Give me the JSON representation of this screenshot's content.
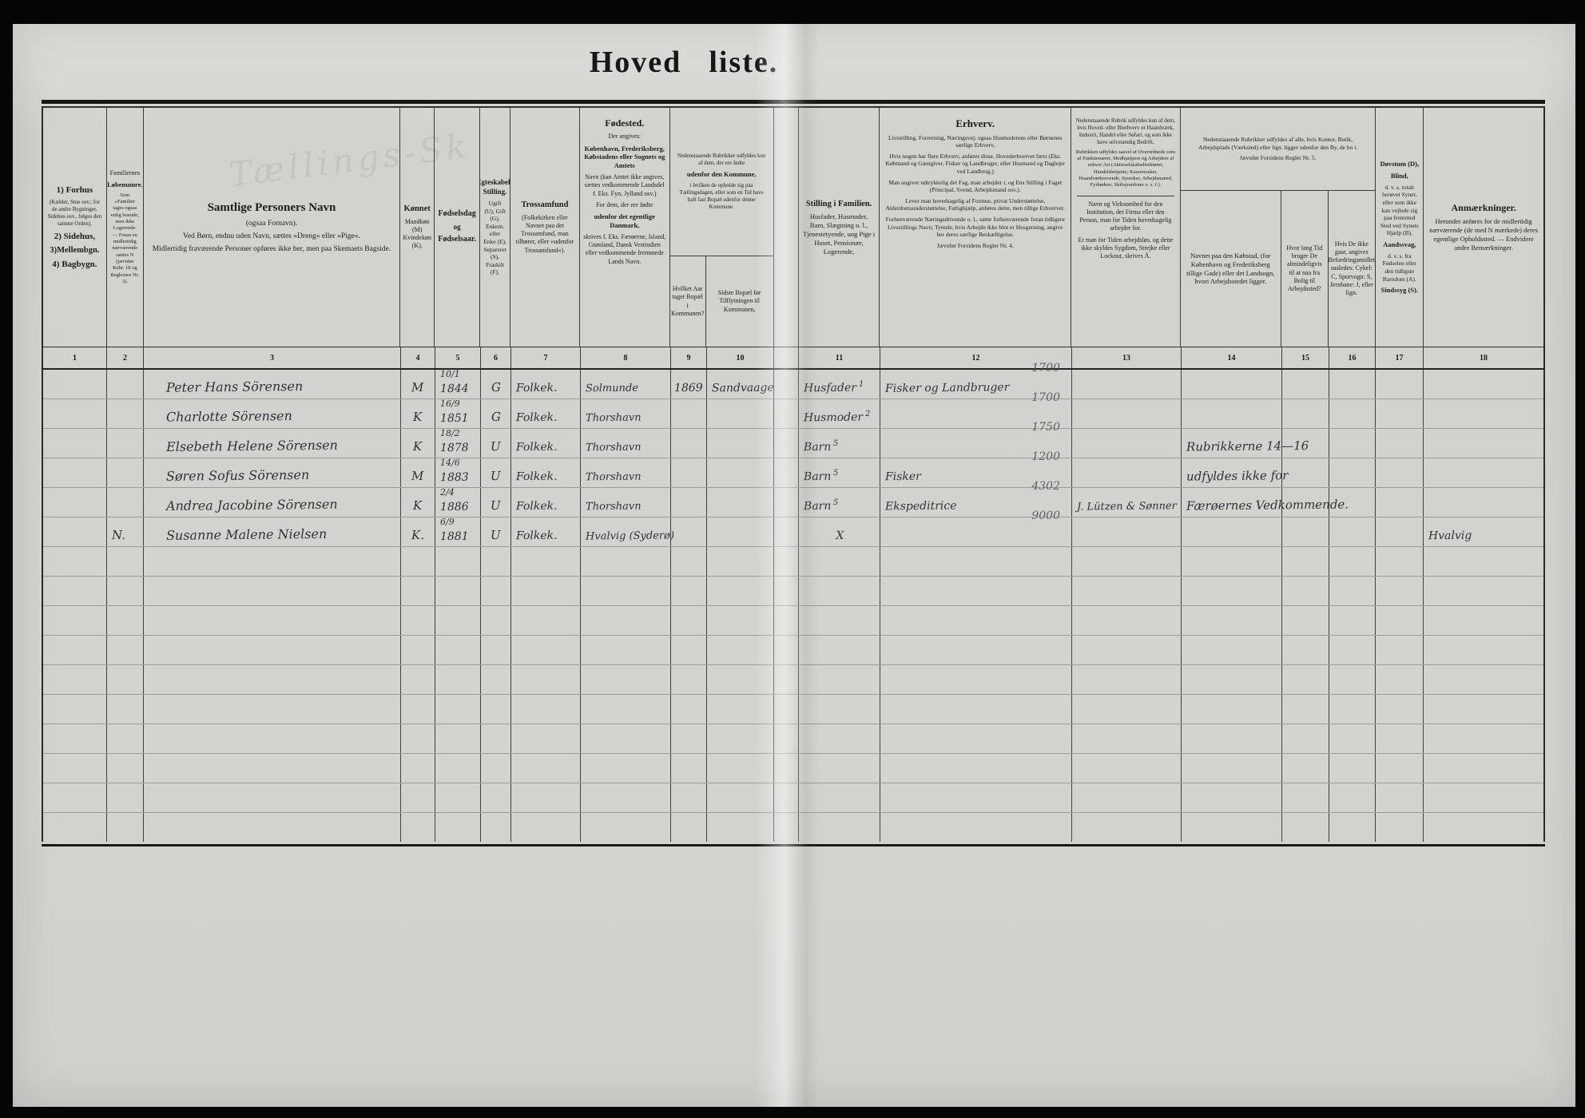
{
  "title": {
    "left": "Hoved",
    "right": "liste."
  },
  "ghost_text": "Tællings-Sk",
  "columns": {
    "c1": {
      "num": "1",
      "parts": [
        {
          "t": "1) Forhus",
          "b": 1,
          "s": 11
        },
        {
          "t": "(Kælder, Stue osv.; for de andre Bygninger, Sidehus osv., følges den samme Orden).",
          "s": 7
        },
        {
          "t": "2) Sidehus,",
          "b": 1,
          "s": 11
        },
        {
          "t": "3)Mellembgn.",
          "b": 1,
          "s": 10.5
        },
        {
          "t": "4) Bagbygn.",
          "b": 1,
          "s": 11
        }
      ]
    },
    "c2": {
      "num": "2",
      "parts": [
        {
          "t": "Familiernes",
          "s": 8
        },
        {
          "t": "Løbenumre.",
          "b": 1,
          "s": 8.5
        },
        {
          "t": "Som »Familier tages ogsaa enlig boende, men ikke Logerende. — Foran en midlertidig nærværende sættes N (jævnfør Rubr. 18 og Reglernes Nr. 3).",
          "s": 6.5
        }
      ]
    },
    "c3": {
      "num": "3",
      "parts": [
        {
          "t": "Samtlige Personers Navn",
          "b": 1,
          "s": 15
        },
        {
          "t": "(ogsaa Fornavn).",
          "s": 9.5
        },
        {
          "t": "Ved Børn, endnu uden Navn, sættes »Dreng« eller »Pige«.",
          "s": 9.5
        },
        {
          "t": "Midlertidig fraværende Personer opføres ikke her, men paa Skemaets Bagside.",
          "s": 9.5
        }
      ]
    },
    "c4": {
      "num": "4",
      "parts": [
        {
          "t": "Kønnet",
          "b": 1,
          "s": 10.5
        },
        {
          "t": "Mandkøn (M) Kvindekøn (K).",
          "s": 8
        }
      ]
    },
    "c5": {
      "num": "5",
      "parts": [
        {
          "t": "Fødselsdag",
          "b": 1,
          "s": 10
        },
        {
          "t": "og",
          "b": 1,
          "s": 9
        },
        {
          "t": "Fødselsaar.",
          "b": 1,
          "s": 10
        }
      ]
    },
    "c6": {
      "num": "6",
      "parts": [
        {
          "t": "Ægteskabelig Stilling.",
          "b": 1,
          "s": 9
        },
        {
          "t": "Ugift (U), Gift (G), Enkem. eller Enke (E), Separeret (S), Fraskilt (F).",
          "s": 7.5
        }
      ]
    },
    "c7": {
      "num": "7",
      "parts": [
        {
          "t": "Trossamfund",
          "b": 1,
          "s": 10.5
        },
        {
          "t": "(Folkekirken eller Navnet paa det Trossamfund, man tilhører, eller »udenfor Trossamfund«).",
          "s": 8
        }
      ]
    },
    "c8": {
      "num": "8",
      "parts": [
        {
          "t": "Fødested.",
          "b": 1,
          "s": 12
        },
        {
          "t": "Der angives:",
          "s": 8
        },
        {
          "t": "København, Frederiksberg, Købstadens eller Sognets og Amtets",
          "b": 1,
          "s": 8.5
        },
        {
          "t": "Navn (kan Amtet ikke angives, sættes vedkommende Landsdel f. Eks. Fyn, Jylland osv.)",
          "s": 8
        },
        {
          "t": "For dem, der ere fødte",
          "s": 8
        },
        {
          "t": "udenfor det egentlige Danmark,",
          "b": 1,
          "s": 8.5
        },
        {
          "t": "skrives f. Eks. Færøerne, Island, Grønland, Dansk Vestindien eller vedkommende fremmede Lands Navn.",
          "s": 8
        }
      ]
    },
    "c9": {
      "num": "9",
      "parts": [
        {
          "t": "Hvilket Aar taget Bopæl i Kommunen?",
          "s": 8
        }
      ]
    },
    "c10": {
      "num": "10",
      "parts": [
        {
          "t": "Sidste Bopæl før Tilflytningen til Kommunen,",
          "s": 8
        }
      ]
    },
    "c11": {
      "num": "11",
      "parts": [
        {
          "t": "Stilling i Familien.",
          "b": 1,
          "s": 10.5
        },
        {
          "t": "Husfader, Husmoder, Barn, Slægtning o. l., Tjenestetyende, ung Pige i Huset, Pensionær, Logerende,",
          "s": 8.5
        }
      ]
    },
    "c12": {
      "num": "12",
      "parts": [
        {
          "t": "Erhverv.",
          "b": 1,
          "s": 13
        },
        {
          "t": "Livsstilling, Forretning, Næringsvej; ogsaa Husmoderens eller Børnenes særlige Erhverv,",
          "s": 7.5
        },
        {
          "t": "Hvis nogen har flere Erhverv, anføres disse, Hovederhvervet først (Eks. Købmand og Gæstgiver, Fisker og Landbruger, eller Husmand og Daglejer ved Landbrug.)",
          "s": 7.5
        },
        {
          "t": "Man angiver udtrykkelig det Fag, man arbejder i, og Ens Stilling i Faget (Principal, Svend, Arbejdsmand osv.).",
          "s": 7.5
        },
        {
          "t": "Lever man hovedsagelig af Formue, privat Understøttelse, Alderdomsunderstøttelse, Fattighjælp, anføres dette, men tillige Erhvervet.",
          "s": 7.5
        },
        {
          "t": "Forhenværende Næringsdrivende o. l., sætte forhenværende foran tidligere Livsstillings Navn; Tyende, hvis Arbejde ikke blot er Husgerning, angive her deres særlige Beskæftigelse.",
          "s": 7.5
        },
        {
          "t": "Jævnfør Forsidens Regler Nr. 4.",
          "s": 7.5
        }
      ]
    },
    "c13": {
      "num": "13",
      "parts": [
        {
          "t": "Nedenstaaende Rubrik udfyldes kun af dem, hvis Hoved- eller Bierhverv er Haandværk, Industri, Handel eller Søfart, og som ikke have selvstændig Bedrift,",
          "s": 7
        },
        {
          "t": "Rubrikken udfyldes saavel af Overordnede som af Funktionærer, Medhjælpere og Arbejdere af enhver Art (Aktieselskabsdirektører, Handelsbetjente, Kasserersker, Haandværkssvende, Syersker, Arbejdsmænd, Fyrbødere, Skibsjomfruer o. s. f.).",
          "s": 6.5
        },
        {
          "t": "Navn og Virksomhed for den Institution, det Firma eller den Person, man for Tiden hovedsagelig arbejder for.",
          "s": 8,
          "rule": 1
        },
        {
          "t": "Er man for Tiden arbejdsløs, og dette ikke skyldes Sygdom, Strejke eller Lockout, skrives Å.",
          "s": 8
        }
      ]
    },
    "c14": {
      "num": "14",
      "parts": [
        {
          "t": "Navnet paa den Købstad, (for København og Frederiksberg tillige Gade) eller det Landsogn, hvori Arbejdsstedet ligger.",
          "s": 8.5
        }
      ]
    },
    "c15": {
      "num": "15",
      "parts": [
        {
          "t": "Hvor lang Tid bruger De almindeligvis til at naa fra Bolig til Arbejdssted?",
          "s": 8
        }
      ]
    },
    "c16": {
      "num": "16",
      "parts": [
        {
          "t": "Hvis De ikke gaar, angives Befordringsmidlet saaledes: Cykel: C, Sporvogn: S, Jernbane: J, eller lign.",
          "s": 8
        }
      ]
    },
    "c17": {
      "num": "17",
      "parts": [
        {
          "t": "Døvstum (D),",
          "b": 1,
          "s": 8.5
        },
        {
          "t": "Blind,",
          "b": 1,
          "s": 8.5
        },
        {
          "t": "d. v. s. totalt berøvet Synet, eller som ikke kan vejlede sig paa fremmed Sted ved Synets Hjælp (B),",
          "s": 7.5
        },
        {
          "t": "Aandssvag,",
          "b": 1,
          "s": 8.5
        },
        {
          "t": "d. v. s. fra Fødselen eller den tidligste Barndom (A).",
          "s": 7.5
        },
        {
          "t": "Sindssyg (S).",
          "b": 1,
          "s": 8.5
        }
      ]
    },
    "c18": {
      "num": "18",
      "parts": [
        {
          "t": "Anmærkninger.",
          "b": 1,
          "s": 12
        },
        {
          "t": "Herunder anføres for de midlertidig nærværende (de med N mærkede) deres egentlige Opholdssted. — Endvidere andre Bemærkninger.",
          "s": 8.5
        }
      ]
    }
  },
  "groups": {
    "g910": {
      "parts": [
        {
          "t": "Nedenstaaende Rubrikker udfyldes kun af dem, der ere fødte",
          "s": 7
        },
        {
          "t": "udenfor den Kommune,",
          "b": 1,
          "s": 8.5
        },
        {
          "t": "i hvilken de opholde sig paa Tællingsdagen, eller som en Tid have haft fast Bopæl udenfor denne Kommune.",
          "s": 7
        }
      ]
    },
    "g1416": {
      "parts": [
        {
          "t": "Nedenstaaende Rubrikker udfyldes af alle, hvis Kontor, Butik, Arbejdsplads (Værksted) eller lign. ligger udenfor den By, de bo i.",
          "s": 7.5
        },
        {
          "t": "Jævnfør Forsidens Regler Nr. 5.",
          "s": 7.5
        }
      ]
    }
  },
  "rows": [
    {
      "name": "Peter Hans Sörensen",
      "sex": "M",
      "birth_day": "10/1",
      "birth_year": "1844",
      "marital": "G",
      "faith": "Folkek.",
      "birthplace": "Solmunde",
      "moved_year": "1869",
      "last_residence": "Sandvaage",
      "family_position": "Husfader",
      "family_sup": "1",
      "occupation": "Fisker og Landbruger",
      "occupation_code": "1700"
    },
    {
      "name": "Charlotte Sörensen",
      "sex": "K",
      "birth_day": "16/9",
      "birth_year": "1851",
      "marital": "G",
      "faith": "Folkek.",
      "birthplace": "Thorshavn",
      "family_position": "Husmoder",
      "family_sup": "2",
      "occupation_code": "1700"
    },
    {
      "name": "Elsebeth Helene Sörensen",
      "sex": "K",
      "birth_day": "18/2",
      "birth_year": "1878",
      "marital": "U",
      "faith": "Folkek.",
      "birthplace": "Thorshavn",
      "family_position": "Barn",
      "family_sup": "5",
      "occupation_code": "1750",
      "columns_14_16_note": "Rubrikkerne 14—16"
    },
    {
      "name": "Søren Sofus Sörensen",
      "sex": "M",
      "birth_day": "14/6",
      "birth_year": "1883",
      "marital": "U",
      "faith": "Folkek.",
      "birthplace": "Thorshavn",
      "family_position": "Barn",
      "family_sup": "5",
      "occupation": "Fisker",
      "occupation_code": "1200",
      "columns_14_16_note": "udfyldes ikke for"
    },
    {
      "name": "Andrea Jacobine Sörensen",
      "sex": "K",
      "birth_day": "2/4",
      "birth_year": "1886",
      "marital": "U",
      "faith": "Folkek.",
      "birthplace": "Thorshavn",
      "family_position": "Barn",
      "family_sup": "5",
      "occupation": "Ekspeditrice",
      "occupation_code": "4302",
      "employer": "J. Lützen & Sønner",
      "columns_14_16_note": "Færøernes Vedkommende."
    },
    {
      "lobenr": "N.",
      "name": "Susanne Malene Nielsen",
      "sex": "K.",
      "birth_day": "6/9",
      "birth_year": "1881",
      "marital": "U",
      "faith": "Folkek.",
      "birthplace": "Hvalvig (Syderø)",
      "family_mark": "X",
      "occupation_code": "9000",
      "remark": "Hvalvig"
    }
  ],
  "total_rows": 16
}
